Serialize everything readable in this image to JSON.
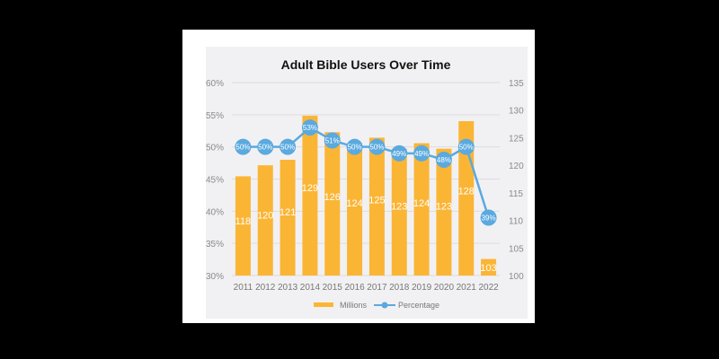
{
  "chart_data": {
    "type": "bar",
    "title": "Adult Bible Users Over Time",
    "categories": [
      "2011",
      "2012",
      "2013",
      "2014",
      "2015",
      "2016",
      "2017",
      "2018",
      "2019",
      "2020",
      "2021",
      "2022"
    ],
    "series": [
      {
        "name": "Millions",
        "type": "bar",
        "axis": "right",
        "values": [
          118,
          120,
          121,
          129,
          126,
          124,
          125,
          123,
          124,
          123,
          128,
          103
        ],
        "labels": [
          "118",
          "120",
          "121",
          "129",
          "126",
          "124",
          "125",
          "123",
          "124",
          "123",
          "128",
          "103"
        ]
      },
      {
        "name": "Percentage",
        "type": "line",
        "axis": "left",
        "values": [
          50,
          50,
          50,
          53,
          51,
          50,
          50,
          49,
          49,
          48,
          50,
          39
        ],
        "labels": [
          "50%",
          "50%",
          "50%",
          "53%",
          "51%",
          "50%",
          "50%",
          "49%",
          "49%",
          "48%",
          "50%",
          "39%"
        ]
      }
    ],
    "left_axis": {
      "ylim": [
        30,
        60
      ],
      "ticks": [
        "30%",
        "35%",
        "40%",
        "45%",
        "50%",
        "55%",
        "60%"
      ],
      "tick_values": [
        30,
        35,
        40,
        45,
        50,
        55,
        60
      ]
    },
    "right_axis": {
      "ylim": [
        100,
        135
      ],
      "ticks": [
        "100",
        "105",
        "110",
        "115",
        "120",
        "125",
        "130",
        "135"
      ],
      "tick_values": [
        100,
        105,
        110,
        115,
        120,
        125,
        130,
        135
      ]
    },
    "grid": true,
    "legend": {
      "position": "bottom",
      "entries": [
        "Millions",
        "Percentage"
      ]
    },
    "colors": {
      "bar": "#fbb535",
      "line": "#5aa9df",
      "grid": "#dcdcdf"
    }
  }
}
